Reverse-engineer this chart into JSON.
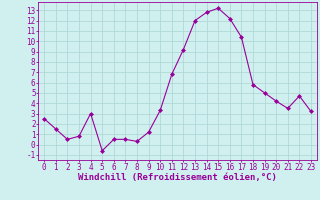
{
  "x": [
    0,
    1,
    2,
    3,
    4,
    5,
    6,
    7,
    8,
    9,
    10,
    11,
    12,
    13,
    14,
    15,
    16,
    17,
    18,
    19,
    20,
    21,
    22,
    23
  ],
  "y": [
    2.5,
    1.5,
    0.5,
    0.8,
    3.0,
    -0.6,
    0.5,
    0.5,
    0.3,
    1.2,
    3.3,
    6.8,
    9.2,
    12.0,
    12.8,
    13.2,
    12.2,
    10.4,
    5.8,
    5.0,
    4.2,
    3.5,
    4.7,
    3.2
  ],
  "line_color": "#990099",
  "marker": "D",
  "marker_size": 2,
  "bg_color": "#d0f0f0",
  "grid_color": "#b0d8d8",
  "xlabel": "Windchill (Refroidissement éolien,°C)",
  "ylabel_ticks": [
    -1,
    0,
    1,
    2,
    3,
    4,
    5,
    6,
    7,
    8,
    9,
    10,
    11,
    12,
    13
  ],
  "ylim": [
    -1.5,
    13.8
  ],
  "xlim": [
    -0.5,
    23.5
  ],
  "xticks": [
    0,
    1,
    2,
    3,
    4,
    5,
    6,
    7,
    8,
    9,
    10,
    11,
    12,
    13,
    14,
    15,
    16,
    17,
    18,
    19,
    20,
    21,
    22,
    23
  ],
  "tick_fontsize": 5.5,
  "xlabel_fontsize": 6.5
}
